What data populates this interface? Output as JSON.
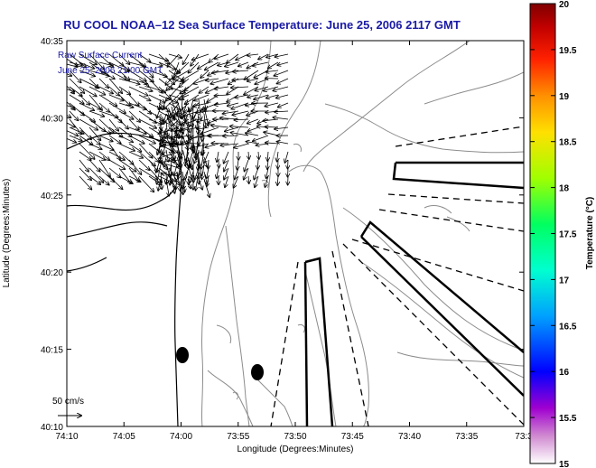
{
  "title": "RU COOL  NOAA–12  Sea Surface Temperature:  June 25, 2006 2117 GMT",
  "info_line1": "Raw Surface Current",
  "info_line2": "June 25, 2006 21:00 GMT",
  "scale_label": "50 cm/s",
  "xlabel": "Longitude (Degrees:Minutes)",
  "ylabel": "Latitude (Degrees:Minutes)",
  "colorbar_label": "Temperature (°C)",
  "x_ticks": [
    "74:10",
    "74:05",
    "74:00",
    "73:55",
    "73:50",
    "73:45",
    "73:40",
    "73:35",
    "73:3"
  ],
  "y_ticks": [
    "40:35",
    "40:30",
    "40:25",
    "40:20",
    "40:15",
    "40:10"
  ],
  "colorbar_ticks": [
    "20",
    "19.5",
    "19",
    "18.5",
    "18",
    "17.5",
    "17",
    "16.5",
    "16",
    "15.5",
    "15"
  ],
  "colors": {
    "title": "#1a1aa6",
    "contour": "#8c8c8c",
    "coast": "#000000",
    "colormap": [
      "#ffffff",
      "#c800c8",
      "#0000ff",
      "#00c8ff",
      "#00ff80",
      "#c8ff00",
      "#ffd000",
      "#ff6000",
      "#ff0000",
      "#b00000",
      "#800000"
    ]
  }
}
